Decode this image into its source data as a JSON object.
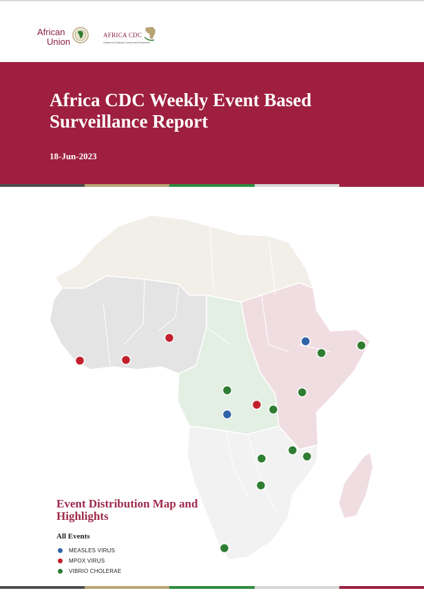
{
  "logos": {
    "au_line1": "African",
    "au_line2": "Union",
    "cdc_name": "AFRICA CDC",
    "cdc_tagline": "Centres for Disease Control and Prevention"
  },
  "header": {
    "title": "Africa CDC Weekly Event Based Surveillance Report",
    "date": "18-Jun-2023"
  },
  "section": {
    "title": "Event Distribution Map and Highlights",
    "legend_title": "All Events"
  },
  "legend": [
    {
      "label": "MEASLES VIRUS",
      "color": "#2f64a8"
    },
    {
      "label": "MPOX VIRUS",
      "color": "#c2202e"
    },
    {
      "label": "VIBRIO CHOLERAE",
      "color": "#2e7d32"
    }
  ],
  "region_colors": {
    "north": "#f1efe8",
    "west": "#e4e4e4",
    "central": "#e3efe3",
    "east": "#f0dde2",
    "south": "#f2f2f2"
  },
  "stripe_colors": [
    "#4d4d4d",
    "#b8a474",
    "#2e8b3f",
    "#d6d6d6",
    "#9e1f3f"
  ]
}
